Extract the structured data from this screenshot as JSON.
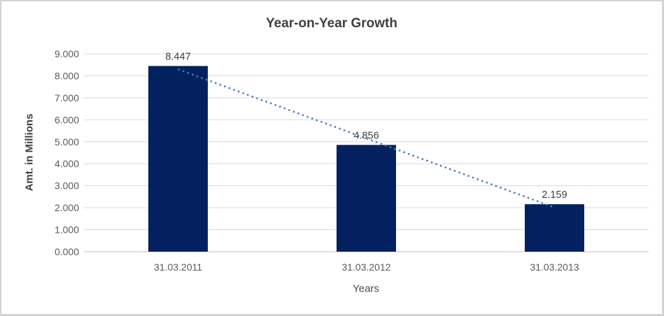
{
  "chart_data": {
    "type": "bar",
    "title": "Year-on-Year Growth",
    "xlabel": "Years",
    "ylabel": "Amt. in Millions",
    "categories": [
      "31.03.2011",
      "31.03.2012",
      "31.03.2013"
    ],
    "values": [
      8.447,
      4.856,
      2.159
    ],
    "data_labels": [
      "8.447",
      "4.856",
      "2.159"
    ],
    "y_ticks": [
      "0.000",
      "1.000",
      "2.000",
      "3.000",
      "4.000",
      "5.000",
      "6.000",
      "7.000",
      "8.000",
      "9.000"
    ],
    "ylim": [
      0,
      9
    ],
    "grid": true,
    "legend": "none",
    "trendline": {
      "type": "linear",
      "style": "dotted"
    },
    "colors": {
      "bar": "#03215f",
      "trendline": "#4a7ebf",
      "gridline": "#d9d9d9",
      "axis_line": "#c3c3c3",
      "tick_label": "#595959",
      "data_label": "#404040",
      "title": "#3f3f3f",
      "border": "#d3d3d3",
      "background": "#ffffff"
    }
  }
}
